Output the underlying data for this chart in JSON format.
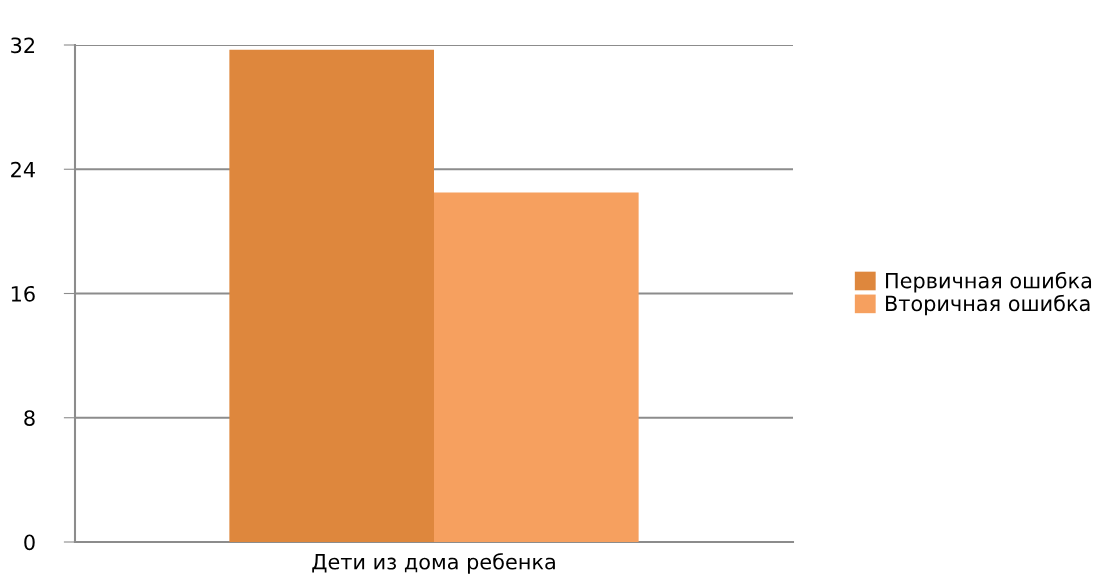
{
  "chart_data": {
    "type": "bar",
    "categories": [
      "Дети из дома ребенка"
    ],
    "series": [
      {
        "name": "Первичная ошибка",
        "color": "#de873d",
        "values": [
          31.7
        ]
      },
      {
        "name": "Вторичная ошибка",
        "color": "#f6a05f",
        "values": [
          22.5
        ]
      }
    ],
    "ylim": [
      0,
      32
    ],
    "yticks": [
      0,
      8,
      16,
      24,
      32
    ],
    "grid": "y",
    "legend": "right"
  }
}
